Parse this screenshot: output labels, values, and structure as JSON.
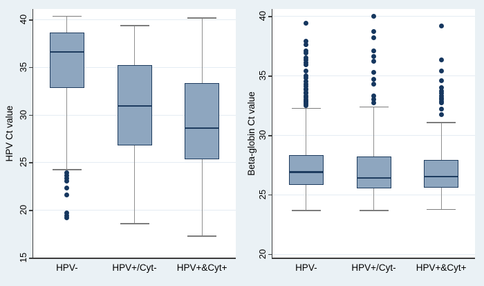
{
  "figure": {
    "background": "#eaf1f5",
    "plot_background": "#ffffff",
    "colors": {
      "box_fill": "#8ea6bf",
      "box_border": "#1e3c5f",
      "median": "#1e3c5f",
      "whisker": "#8f8f8f",
      "whisker_cap": "#7d7d7d",
      "outlier": "#16375f",
      "grid": "#e4ecf3",
      "axis": "#3d3d3d",
      "text": "#000000"
    }
  },
  "chart_data": [
    {
      "type": "box",
      "title": "",
      "ylabel": "HPV Ct value",
      "xlabel": "",
      "yticks": [
        15,
        20,
        25,
        30,
        35,
        40
      ],
      "ylim": [
        15.0,
        41.1
      ],
      "grid": "horizontal",
      "legend": "none",
      "categories": [
        "HPV-",
        "HPV+/Cyt-",
        "HPV+&Cyt+"
      ],
      "boxes": [
        {
          "category": "HPV-",
          "q1": 32.8,
          "median": 36.6,
          "q3": 38.6,
          "whisker_low": 24.3,
          "whisker_high": 40.4,
          "outliers": [
            23.9,
            23.6,
            23.3,
            23.0,
            22.3,
            21.6,
            19.7,
            19.4,
            19.2
          ]
        },
        {
          "category": "HPV+/Cyt-",
          "q1": 26.8,
          "median": 30.9,
          "q3": 35.2,
          "whisker_low": 18.6,
          "whisker_high": 39.4,
          "outliers": []
        },
        {
          "category": "HPV+&Cyt+",
          "q1": 25.3,
          "median": 28.6,
          "q3": 33.3,
          "whisker_low": 17.3,
          "whisker_high": 40.2,
          "outliers": []
        }
      ]
    },
    {
      "type": "box",
      "title": "",
      "ylabel": "Beta-globin Ct value",
      "xlabel": "",
      "yticks": [
        20,
        25,
        30,
        35,
        40
      ],
      "ylim": [
        19.7,
        40.6
      ],
      "grid": "horizontal",
      "legend": "none",
      "categories": [
        "HPV-",
        "HPV+/Cyt-",
        "HPV+&Cyt+"
      ],
      "boxes": [
        {
          "category": "HPV-",
          "q1": 25.8,
          "median": 26.9,
          "q3": 28.3,
          "whisker_low": 23.7,
          "whisker_high": 32.3,
          "outliers": [
            39.4,
            37.9,
            37.6,
            37.1,
            36.9,
            36.5,
            36.3,
            36.1,
            35.9,
            35.4,
            35.0,
            34.8,
            34.5,
            34.3,
            34.1,
            33.9,
            33.8,
            33.6,
            33.5,
            33.3,
            33.2,
            33.0,
            32.9,
            32.8,
            32.7,
            32.6,
            32.5
          ]
        },
        {
          "category": "HPV+/Cyt-",
          "q1": 25.5,
          "median": 26.4,
          "q3": 28.2,
          "whisker_low": 23.7,
          "whisker_high": 32.4,
          "outliers": [
            40.0,
            38.7,
            38.2,
            37.1,
            36.6,
            36.2,
            35.3,
            34.7,
            34.3,
            33.3,
            33.0,
            32.7
          ]
        },
        {
          "category": "HPV+&Cyt+",
          "q1": 25.6,
          "median": 26.5,
          "q3": 27.9,
          "whisker_low": 23.8,
          "whisker_high": 31.1,
          "outliers": [
            39.2,
            36.3,
            35.4,
            34.6,
            34.0,
            33.7,
            33.5,
            33.3,
            33.1,
            33.0,
            32.85,
            32.7,
            32.2,
            31.7
          ]
        }
      ]
    }
  ]
}
